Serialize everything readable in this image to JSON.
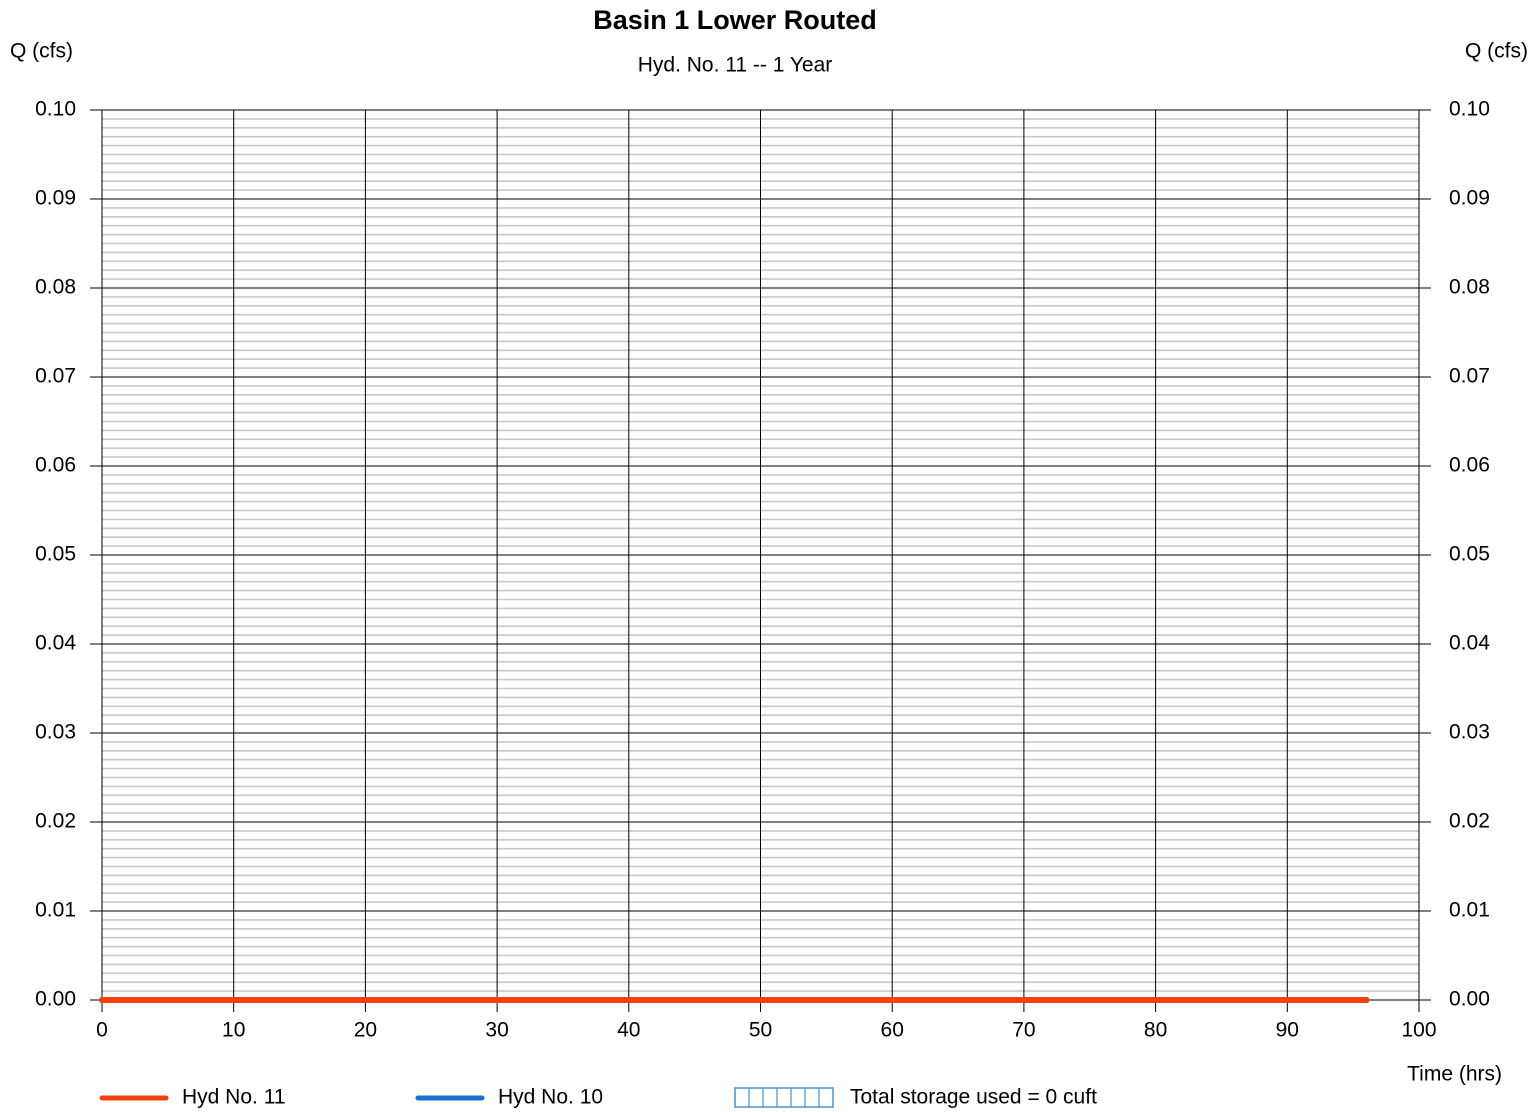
{
  "chart_data": {
    "type": "line",
    "title": "Basin 1 Lower Routed",
    "subtitle": "Hyd. No. 11 -- 1 Year",
    "y_label": "Q (cfs)",
    "y2_label": "Q (cfs)",
    "x_label": "Time (hrs)",
    "x": [
      0,
      96
    ],
    "series": [
      {
        "name": "Hyd No. 11",
        "color": "#f4400f",
        "values": [
          0,
          0
        ]
      },
      {
        "name": "Hyd No. 10",
        "color": "#1a6fd0",
        "values": [
          0,
          0
        ]
      }
    ],
    "legend_note": "Total storage used = 0 cuft",
    "xlim": [
      0,
      100
    ],
    "xticks": [
      0,
      10,
      20,
      30,
      40,
      50,
      60,
      70,
      80,
      90,
      100
    ],
    "ylim": [
      0,
      0.1
    ],
    "yticks": [
      {
        "value": 0,
        "label": "0.00"
      },
      0.01,
      0.02,
      0.03,
      0.04,
      0.05,
      0.06,
      0.07,
      0.08,
      0.09,
      {
        "value": 0.1,
        "label": "0.10"
      }
    ],
    "y2lim": [
      0,
      0.1
    ],
    "y2ticks": [
      {
        "value": 0,
        "label": "0.00"
      },
      0.01,
      0.02,
      0.03,
      0.04,
      0.05,
      0.06,
      0.07,
      0.08,
      0.09,
      {
        "value": 0.1,
        "label": "0.10"
      }
    ],
    "grid": true,
    "legend": "bottom"
  }
}
